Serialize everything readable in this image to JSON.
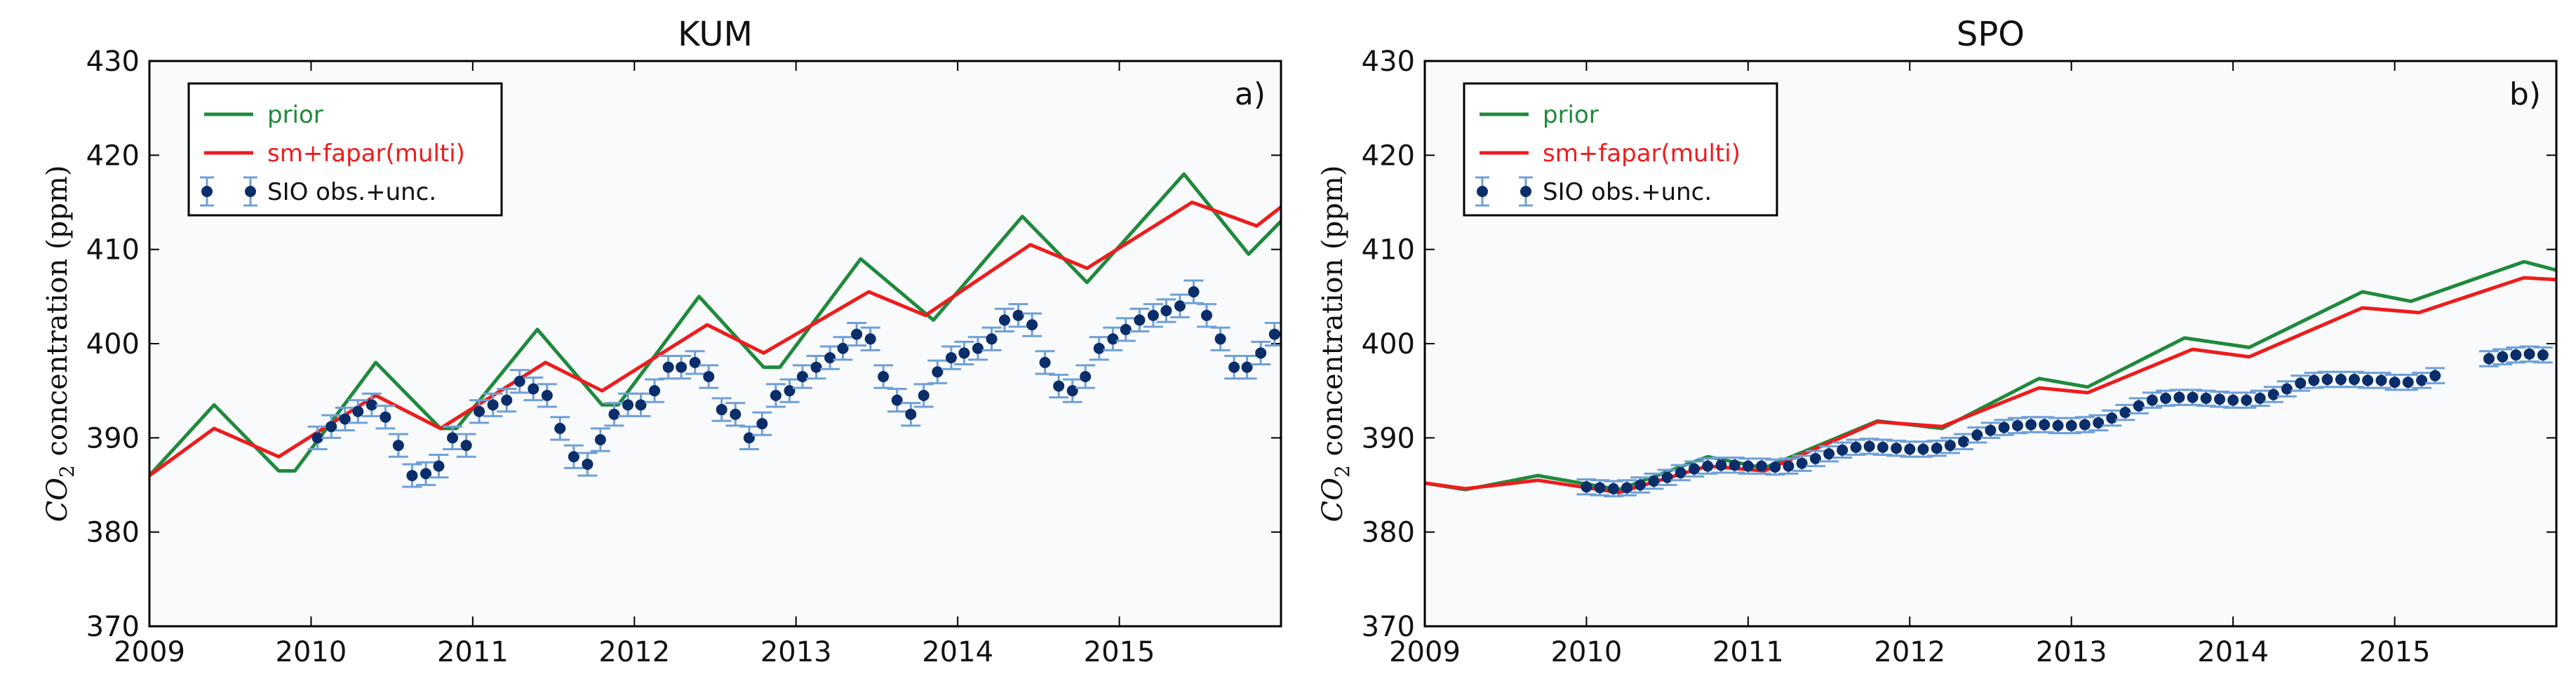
{
  "colors": {
    "prior": "#1f8a3c",
    "optimized": "#ee1c1c",
    "observations": "#0b2e6b",
    "error_bars": "#6fa0d8",
    "plot_background": "#f9fafc"
  },
  "chart_data": [
    {
      "type": "line",
      "title": "KUM",
      "panel_label": "a)",
      "xlabel": "",
      "ylabel_species": "CO",
      "ylabel_subscript": "2",
      "ylabel_rest": " concentration (ppm)",
      "xlim": [
        2009,
        2016
      ],
      "ylim": [
        370,
        430
      ],
      "xticks": [
        "2009",
        "2010",
        "2011",
        "2012",
        "2013",
        "2014",
        "2015"
      ],
      "yticks": [
        "370",
        "380",
        "390",
        "400",
        "410",
        "420",
        "430"
      ],
      "legend": [
        "prior",
        "sm+fapar(multi)",
        "SIO obs.+unc."
      ],
      "series": [
        {
          "name": "prior",
          "x": [
            2009.0,
            2009.4,
            2009.8,
            2009.9,
            2010.4,
            2010.8,
            2010.9,
            2011.4,
            2011.8,
            2011.9,
            2012.4,
            2012.8,
            2012.9,
            2013.4,
            2013.85,
            2014.4,
            2014.8,
            2015.4,
            2015.8,
            2016.0
          ],
          "y": [
            386.0,
            393.5,
            386.5,
            386.5,
            398.0,
            391.0,
            391.0,
            401.5,
            393.5,
            393.5,
            405.0,
            397.5,
            397.5,
            409.0,
            402.5,
            413.5,
            406.5,
            418.0,
            409.5,
            413.0
          ]
        },
        {
          "name": "sm+fapar(multi)",
          "x": [
            2009.0,
            2009.4,
            2009.8,
            2010.4,
            2010.8,
            2011.45,
            2011.8,
            2012.45,
            2012.8,
            2013.45,
            2013.8,
            2014.45,
            2014.8,
            2015.45,
            2015.85,
            2016.0
          ],
          "y": [
            386.0,
            391.0,
            388.0,
            394.5,
            391.0,
            398.0,
            395.0,
            402.0,
            399.0,
            405.5,
            403.0,
            410.5,
            408.0,
            415.0,
            412.5,
            414.5
          ]
        },
        {
          "name": "SIO obs.+unc.",
          "x": [
            2010.04,
            2010.125,
            2010.21,
            2010.29,
            2010.375,
            2010.46,
            2010.54,
            2010.625,
            2010.71,
            2010.79,
            2010.875,
            2010.96,
            2011.04,
            2011.125,
            2011.21,
            2011.29,
            2011.375,
            2011.46,
            2011.54,
            2011.625,
            2011.71,
            2011.79,
            2011.875,
            2011.96,
            2012.04,
            2012.125,
            2012.21,
            2012.29,
            2012.375,
            2012.46,
            2012.54,
            2012.625,
            2012.71,
            2012.79,
            2012.875,
            2012.96,
            2013.04,
            2013.125,
            2013.21,
            2013.29,
            2013.375,
            2013.46,
            2013.54,
            2013.625,
            2013.71,
            2013.79,
            2013.875,
            2013.96,
            2014.04,
            2014.125,
            2014.21,
            2014.29,
            2014.375,
            2014.46,
            2014.54,
            2014.625,
            2014.71,
            2014.79,
            2014.875,
            2014.96,
            2015.04,
            2015.125,
            2015.21,
            2015.29,
            2015.375,
            2015.46,
            2015.54,
            2015.625,
            2015.71,
            2015.79,
            2015.875,
            2015.96
          ],
          "y": [
            390.0,
            391.2,
            392.0,
            392.8,
            393.5,
            392.2,
            389.2,
            386.0,
            386.2,
            387.0,
            390.0,
            389.2,
            392.8,
            393.5,
            394.0,
            396.0,
            395.2,
            394.5,
            391.0,
            388.0,
            387.2,
            389.8,
            392.5,
            393.5,
            393.5,
            395.0,
            397.5,
            397.5,
            398.0,
            396.5,
            393.0,
            392.5,
            390.0,
            391.5,
            394.5,
            395.0,
            396.5,
            397.5,
            398.5,
            399.5,
            401.0,
            400.5,
            396.5,
            394.0,
            392.5,
            394.5,
            397.0,
            398.5,
            399.0,
            399.5,
            400.5,
            402.5,
            403.0,
            402.0,
            398.0,
            395.5,
            395.0,
            396.5,
            399.5,
            400.5,
            401.5,
            402.5,
            403.0,
            403.5,
            404.0,
            405.5,
            403.0,
            400.5,
            397.5,
            397.5,
            399.0,
            401.0
          ],
          "error": 1.2
        }
      ]
    },
    {
      "type": "line",
      "title": "SPO",
      "panel_label": "b)",
      "xlabel": "",
      "ylabel_species": "CO",
      "ylabel_subscript": "2",
      "ylabel_rest": " concentration (ppm)",
      "xlim": [
        2009,
        2016
      ],
      "ylim": [
        370,
        430
      ],
      "xticks": [
        "2009",
        "2010",
        "2011",
        "2012",
        "2013",
        "2014",
        "2015"
      ],
      "yticks": [
        "370",
        "380",
        "390",
        "400",
        "410",
        "420",
        "430"
      ],
      "legend": [
        "prior",
        "sm+fapar(multi)",
        "SIO obs.+unc."
      ],
      "series": [
        {
          "name": "prior",
          "x": [
            2009.0,
            2009.25,
            2009.7,
            2010.2,
            2010.75,
            2011.1,
            2011.8,
            2012.2,
            2012.8,
            2013.1,
            2013.7,
            2014.1,
            2014.8,
            2015.1,
            2015.8,
            2016.0
          ],
          "y": [
            385.2,
            384.5,
            386.0,
            384.5,
            388.0,
            386.8,
            391.8,
            391.0,
            396.3,
            395.4,
            400.6,
            399.6,
            405.5,
            404.5,
            408.7,
            407.8
          ]
        },
        {
          "name": "sm+fapar(multi)",
          "x": [
            2009.0,
            2009.25,
            2009.7,
            2010.2,
            2010.75,
            2011.1,
            2011.8,
            2012.2,
            2012.8,
            2013.1,
            2013.75,
            2014.1,
            2014.8,
            2015.15,
            2015.8,
            2016.0
          ],
          "y": [
            385.2,
            384.6,
            385.5,
            384.2,
            387.0,
            386.5,
            391.7,
            391.2,
            395.3,
            394.8,
            399.4,
            398.6,
            403.8,
            403.3,
            407.0,
            406.8
          ]
        },
        {
          "name": "SIO obs.+unc.",
          "x": [
            2010.0,
            2010.083,
            2010.167,
            2010.25,
            2010.333,
            2010.417,
            2010.5,
            2010.583,
            2010.667,
            2010.75,
            2010.833,
            2010.917,
            2011.0,
            2011.083,
            2011.167,
            2011.25,
            2011.333,
            2011.417,
            2011.5,
            2011.583,
            2011.667,
            2011.75,
            2011.833,
            2011.917,
            2012.0,
            2012.083,
            2012.167,
            2012.25,
            2012.333,
            2012.417,
            2012.5,
            2012.583,
            2012.667,
            2012.75,
            2012.833,
            2012.917,
            2013.0,
            2013.083,
            2013.167,
            2013.25,
            2013.333,
            2013.417,
            2013.5,
            2013.583,
            2013.667,
            2013.75,
            2013.833,
            2013.917,
            2014.0,
            2014.083,
            2014.167,
            2014.25,
            2014.333,
            2014.417,
            2014.5,
            2014.583,
            2014.667,
            2014.75,
            2014.833,
            2014.917,
            2015.0,
            2015.083,
            2015.167,
            2015.25,
            2015.583,
            2015.667,
            2015.75,
            2015.833,
            2015.917
          ],
          "y": [
            384.8,
            384.7,
            384.6,
            384.7,
            385.0,
            385.4,
            385.8,
            386.3,
            386.7,
            387.0,
            387.1,
            387.1,
            387.0,
            387.0,
            386.9,
            387.0,
            387.3,
            387.8,
            388.3,
            388.7,
            389.0,
            389.1,
            389.0,
            388.9,
            388.8,
            388.8,
            388.9,
            389.2,
            389.6,
            390.3,
            390.8,
            391.1,
            391.3,
            391.4,
            391.4,
            391.3,
            391.3,
            391.4,
            391.6,
            392.1,
            392.7,
            393.4,
            394.0,
            394.2,
            394.3,
            394.3,
            394.2,
            394.1,
            394.0,
            394.0,
            394.2,
            394.6,
            395.2,
            395.8,
            396.1,
            396.2,
            396.2,
            396.2,
            396.1,
            396.1,
            395.9,
            395.9,
            396.1,
            396.6,
            398.4,
            398.6,
            398.8,
            398.9,
            398.8
          ],
          "error": 0.8
        }
      ]
    }
  ]
}
